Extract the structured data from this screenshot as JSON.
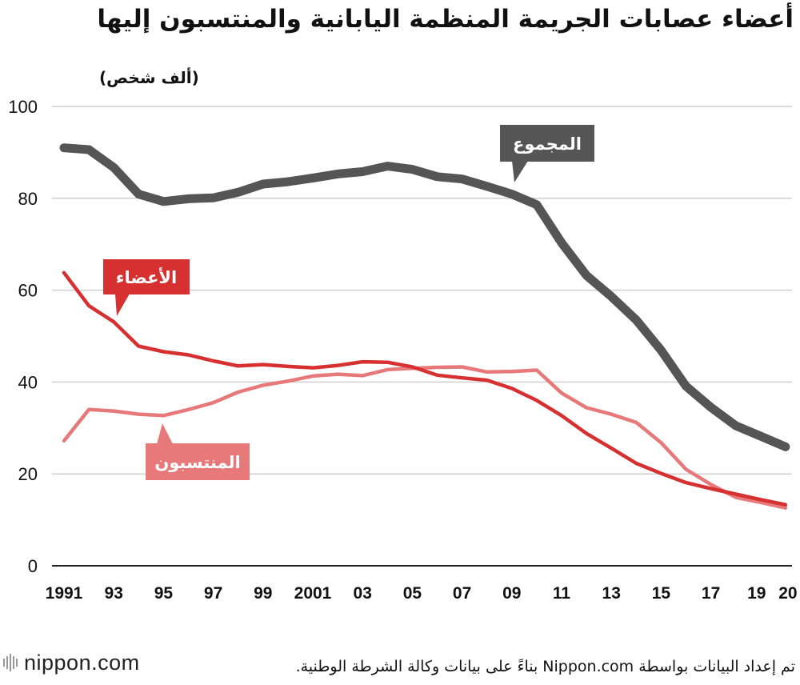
{
  "chart_data": {
    "type": "line",
    "title": "أعضاء عصابات الجريمة المنظمة اليابانية والمنتسبون إليها",
    "ylabel": "(ألف شخص)",
    "ylim": [
      0,
      100
    ],
    "yticks": [
      0,
      20,
      40,
      60,
      80,
      100
    ],
    "grid": true,
    "x": [
      1991,
      1992,
      1993,
      1994,
      1995,
      1996,
      1997,
      1998,
      1999,
      2000,
      2001,
      2002,
      2003,
      2004,
      2005,
      2006,
      2007,
      2008,
      2009,
      2010,
      2011,
      2012,
      2013,
      2014,
      2015,
      2016,
      2017,
      2018,
      2019,
      2020
    ],
    "x_tick_labels": [
      {
        "x": 1991,
        "label": "1991"
      },
      {
        "x": 1993,
        "label": "93"
      },
      {
        "x": 1995,
        "label": "95"
      },
      {
        "x": 1997,
        "label": "97"
      },
      {
        "x": 1999,
        "label": "99"
      },
      {
        "x": 2001,
        "label": "2001"
      },
      {
        "x": 2003,
        "label": "03"
      },
      {
        "x": 2005,
        "label": "05"
      },
      {
        "x": 2007,
        "label": "07"
      },
      {
        "x": 2009,
        "label": "09"
      },
      {
        "x": 2011,
        "label": "11"
      },
      {
        "x": 2013,
        "label": "13"
      },
      {
        "x": 2015,
        "label": "15"
      },
      {
        "x": 2017,
        "label": "17"
      },
      {
        "x": 2019,
        "label": "19"
      },
      {
        "x": 2020,
        "label": "20"
      }
    ],
    "series": [
      {
        "name": "المجموع",
        "color": "#555555",
        "values": [
          91.0,
          90.6,
          86.7,
          80.9,
          79.3,
          79.9,
          80.1,
          81.3,
          83.1,
          83.6,
          84.4,
          85.3,
          85.8,
          87.0,
          86.3,
          84.7,
          84.2,
          82.6,
          80.9,
          78.6,
          70.3,
          63.2,
          58.6,
          53.5,
          46.9,
          39.1,
          34.5,
          30.5,
          28.2,
          25.9
        ]
      },
      {
        "name": "الأعضاء",
        "color": "#d63031",
        "values": [
          63.8,
          56.6,
          53.1,
          47.8,
          46.6,
          45.9,
          44.6,
          43.5,
          43.8,
          43.4,
          43.1,
          43.6,
          44.4,
          44.3,
          43.3,
          41.5,
          40.9,
          40.4,
          38.6,
          36.0,
          32.7,
          28.8,
          25.6,
          22.3,
          20.1,
          18.1,
          16.8,
          15.6,
          14.4,
          13.3
        ]
      },
      {
        "name": "المنتسبون",
        "color": "#e8797a",
        "values": [
          27.2,
          34.0,
          33.7,
          33.0,
          32.7,
          34.0,
          35.5,
          37.8,
          39.3,
          40.2,
          41.3,
          41.7,
          41.4,
          42.7,
          43.0,
          43.2,
          43.3,
          42.2,
          42.3,
          42.6,
          37.6,
          34.4,
          33.0,
          31.2,
          26.8,
          21.0,
          17.7,
          14.9,
          13.8,
          12.6
        ]
      }
    ]
  },
  "labels": {
    "total": "المجموع",
    "members": "الأعضاء",
    "affiliates": "المنتسبون"
  },
  "footer": {
    "logo_text": "nippon.com",
    "source": "تم إعداد البيانات بواسطة Nippon.com بناءً على بيانات وكالة الشرطة الوطنية."
  }
}
